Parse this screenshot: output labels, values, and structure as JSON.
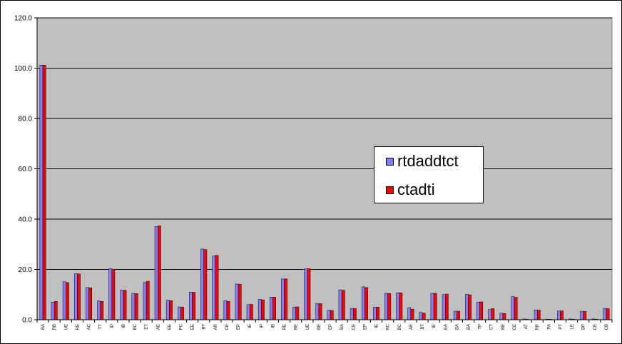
{
  "chart_data": {
    "type": "bar",
    "ylim": [
      0,
      120
    ],
    "yticks": [
      "0.0",
      "20.0",
      "40.0",
      "60.0",
      "80.0",
      "100.0",
      "120.0"
    ],
    "grid": true,
    "legend_position": "center-right",
    "colors": {
      "plot_bg": "#c0c0c0",
      "series1": "#8080ff",
      "series2": "#ff0000"
    },
    "categories": [
      "BA",
      "RB",
      "UE",
      "RE",
      "AC",
      "TT",
      "IP",
      "IB",
      "BC",
      "ET",
      "AE",
      "EE",
      "PC",
      "EE",
      "BT",
      "AR",
      "CE",
      "EP",
      "IE",
      "IP",
      "IB",
      "RE",
      "BE",
      "UE",
      "BE",
      "EP",
      "BA",
      "CE",
      "EP",
      "IE",
      "RC",
      "BC",
      "AE",
      "BT",
      "IE",
      "EA",
      "BA",
      "BA",
      "TP",
      "CT",
      "BE",
      "CE",
      "AT",
      "RR",
      "PA",
      "PT",
      "LE",
      "BP",
      "CE",
      "CB"
    ],
    "series": [
      {
        "name": "rtdaddtct",
        "values": [
          101.2,
          7.0,
          15.1,
          18.3,
          12.8,
          7.5,
          20.3,
          11.8,
          10.5,
          14.8,
          37.1,
          7.8,
          5.1,
          11.0,
          28.1,
          25.3,
          7.6,
          14.2,
          6.0,
          8.1,
          9.0,
          16.2,
          5.0,
          20.2,
          6.5,
          3.8,
          11.9,
          4.5,
          13.1,
          5.0,
          10.5,
          10.7,
          4.8,
          2.9,
          10.5,
          10.0,
          3.4,
          10.1,
          7.0,
          4.1,
          2.6,
          9.2,
          0.3,
          3.9,
          0.2,
          3.5,
          0.3,
          3.4,
          0.3,
          4.5
        ]
      },
      {
        "name": "ctadti",
        "values": [
          101.2,
          7.3,
          14.8,
          18.2,
          12.7,
          7.3,
          20.1,
          11.7,
          10.4,
          15.3,
          37.3,
          7.6,
          5.0,
          10.9,
          27.9,
          25.6,
          7.3,
          14.1,
          6.1,
          7.9,
          9.0,
          16.2,
          5.1,
          20.3,
          6.4,
          3.7,
          11.7,
          4.5,
          12.8,
          5.0,
          10.4,
          10.7,
          4.2,
          2.6,
          10.5,
          10.2,
          3.4,
          9.9,
          7.1,
          4.4,
          2.5,
          8.9,
          0.1,
          3.8,
          0.1,
          3.5,
          0.2,
          3.3,
          0.2,
          4.4
        ]
      }
    ]
  }
}
